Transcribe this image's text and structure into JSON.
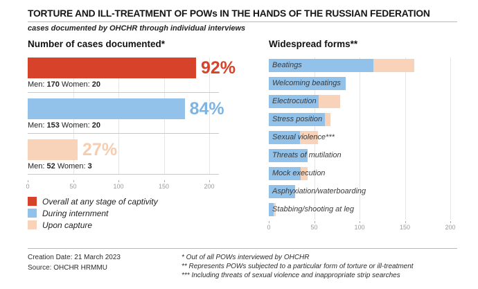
{
  "header": {
    "title": "TORTURE AND ILL-TREATMENT OF POWs IN THE HANDS OF THE RUSSIAN FEDERATION",
    "subtitle": "cases documented by OHCHR through individual interviews"
  },
  "colors": {
    "overall": "#d6432a",
    "internment": "#92c1e9",
    "capture": "#f8d3ba"
  },
  "percent_colors": {
    "overall": "#d6432a",
    "internment": "#7db4e2",
    "capture": "#f6cdb0"
  },
  "chart_data": [
    {
      "type": "bar",
      "orientation": "horizontal",
      "title": "Number of cases documented*",
      "xlim": [
        0,
        210
      ],
      "x_ticks": [
        0,
        50,
        100,
        150,
        200
      ],
      "grid": true,
      "legend_position": "bottom-left",
      "caption_labels": {
        "men": "Men:",
        "women": "Women:"
      },
      "bars": [
        {
          "name": "Overall at any stage of captivity",
          "percent": "92%",
          "men": 170,
          "women": 20,
          "total": 190,
          "color_key": "overall"
        },
        {
          "name": "During internment",
          "percent": "84%",
          "men": 153,
          "women": 20,
          "total": 173,
          "color_key": "internment"
        },
        {
          "name": "Upon capture",
          "percent": "27%",
          "men": 52,
          "women": 3,
          "total": 55,
          "color_key": "capture"
        }
      ],
      "legend": [
        {
          "label": "Overall at any stage of captivity",
          "color_key": "overall"
        },
        {
          "label": "During internment",
          "color_key": "internment"
        },
        {
          "label": "Upon capture",
          "color_key": "capture"
        }
      ]
    },
    {
      "type": "bar",
      "orientation": "horizontal",
      "stacked": true,
      "title": "Widespread forms**",
      "xlim": [
        0,
        210
      ],
      "x_ticks": [
        0,
        50,
        100,
        150,
        200
      ],
      "grid": true,
      "categories": [
        "Beatings",
        "Welcoming beatings",
        "Electrocution",
        "Stress position",
        "Sexual violence***",
        "Threats of mutilation",
        "Mock execution",
        "Asphyxiation/waterboarding",
        "Stabbing/shooting at leg"
      ],
      "series": [
        {
          "name": "During internment",
          "color_key": "internment",
          "values": [
            115,
            85,
            55,
            62,
            34,
            43,
            35,
            29,
            5
          ]
        },
        {
          "name": "Upon capture",
          "color_key": "capture",
          "values": [
            45,
            0,
            24,
            6,
            20,
            0,
            8,
            0,
            3
          ]
        }
      ]
    }
  ],
  "footer": {
    "creation_date": "Creation Date: 21 March 2023",
    "source": "Source: OHCHR HRMMU",
    "notes": [
      "* Out of all POWs interviewed by OHCHR",
      "** Represents POWs subjected to a particular form of torture or ill-treatment",
      "*** Including threats of sexual violence and inappropriate strip searches"
    ]
  }
}
